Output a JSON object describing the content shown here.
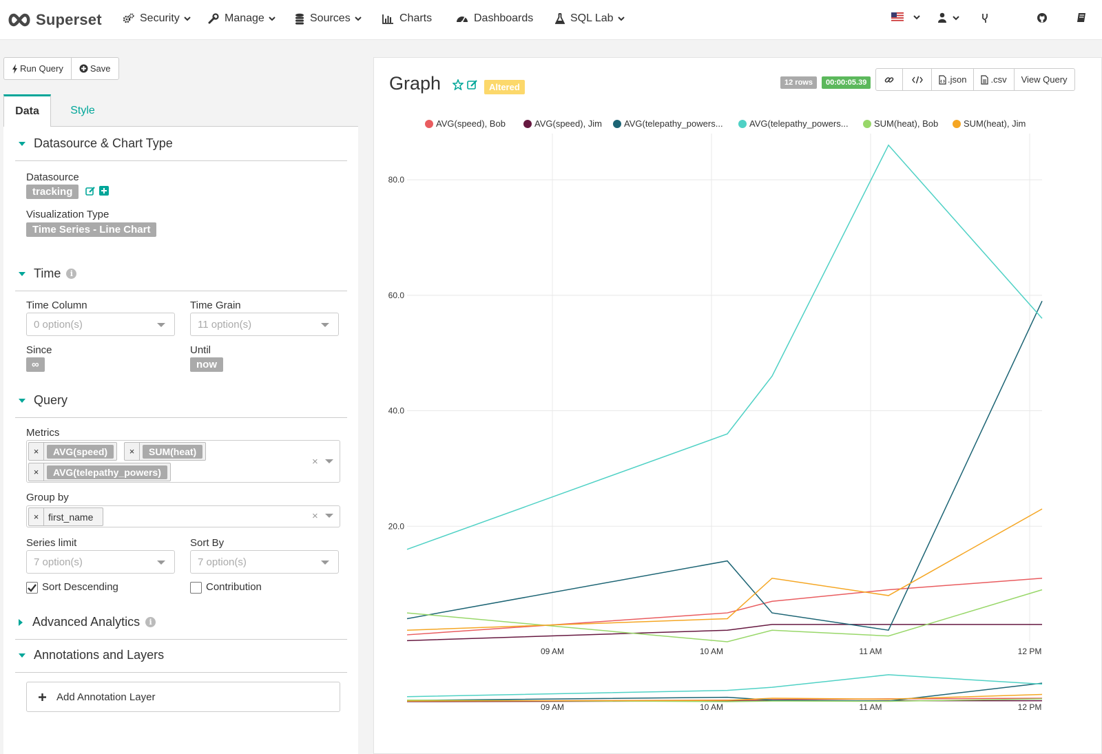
{
  "navbar": {
    "brand": "Superset",
    "items": [
      {
        "label": "Security",
        "icon": "gears-icon",
        "dropdown": true
      },
      {
        "label": "Manage",
        "icon": "wrench-icon",
        "dropdown": true
      },
      {
        "label": "Sources",
        "icon": "database-icon",
        "dropdown": true
      },
      {
        "label": "Charts",
        "icon": "bar-chart-icon",
        "dropdown": false
      },
      {
        "label": "Dashboards",
        "icon": "dashboard-icon",
        "dropdown": false
      },
      {
        "label": "SQL Lab",
        "icon": "flask-icon",
        "dropdown": true
      }
    ],
    "right_icons": [
      "us-flag-icon",
      "user-icon",
      "code-fork-icon",
      "github-icon",
      "book-icon"
    ]
  },
  "toolbar": {
    "run_label": "Run Query",
    "save_label": "Save"
  },
  "tabs": {
    "data": "Data",
    "style": "Style"
  },
  "sections": {
    "datasource_chart_type": "Datasource & Chart Type",
    "time": "Time",
    "query": "Query",
    "advanced_analytics": "Advanced Analytics",
    "annotations": "Annotations and Layers"
  },
  "fields": {
    "datasource_label": "Datasource",
    "datasource_value": "tracking",
    "viz_type_label": "Visualization Type",
    "viz_type_value": "Time Series - Line Chart",
    "time_column_label": "Time Column",
    "time_column_placeholder": "0 option(s)",
    "time_grain_label": "Time Grain",
    "time_grain_placeholder": "11 option(s)",
    "since_label": "Since",
    "since_value": "∞",
    "until_label": "Until",
    "until_value": "now",
    "metrics_label": "Metrics",
    "metrics": [
      "AVG(speed)",
      "SUM(heat)",
      "AVG(telepathy_powers)"
    ],
    "groupby_label": "Group by",
    "groupby": [
      "first_name"
    ],
    "series_limit_label": "Series limit",
    "series_limit_placeholder": "7 option(s)",
    "sort_by_label": "Sort By",
    "sort_by_placeholder": "7 option(s)",
    "sort_desc_label": "Sort Descending",
    "sort_desc_checked": true,
    "contribution_label": "Contribution",
    "contribution_checked": false,
    "add_annotation_label": "Add Annotation Layer"
  },
  "chart_header": {
    "title": "Graph",
    "altered": "Altered",
    "rows": "12 rows",
    "elapsed": "00:00:05.39",
    "buttons": [
      ".json",
      ".csv",
      "View Query"
    ]
  },
  "chart_data": {
    "type": "line",
    "x": [
      "08:05",
      "10:05",
      "10:22",
      "11:05",
      "12:05"
    ],
    "x_ticks": [
      "09 AM",
      "10 AM",
      "11 AM",
      "12 PM"
    ],
    "y_ticks": [
      "20.0",
      "40.0",
      "60.0",
      "80.0"
    ],
    "ylim": [
      0,
      88
    ],
    "grid": true,
    "legend_position": "top",
    "series": [
      {
        "name": "AVG(speed), Bob",
        "color": "#e95c5f",
        "values": [
          1.2,
          5,
          7,
          9,
          11
        ]
      },
      {
        "name": "AVG(speed), Jim",
        "color": "#661840",
        "values": [
          0.2,
          2,
          3,
          3,
          3
        ]
      },
      {
        "name": "AVG(telepathy_powers...",
        "color": "#1c6474",
        "values": [
          4,
          14,
          5,
          2,
          59
        ]
      },
      {
        "name": "AVG(telepathy_powers...",
        "color": "#4fd1c5",
        "values": [
          16,
          36,
          46,
          86,
          56
        ]
      },
      {
        "name": "SUM(heat), Bob",
        "color": "#98d769",
        "values": [
          5,
          0,
          2,
          1,
          9
        ]
      },
      {
        "name": "SUM(heat), Jim",
        "color": "#f5a623",
        "values": [
          2,
          4,
          11,
          8,
          23
        ]
      }
    ]
  }
}
